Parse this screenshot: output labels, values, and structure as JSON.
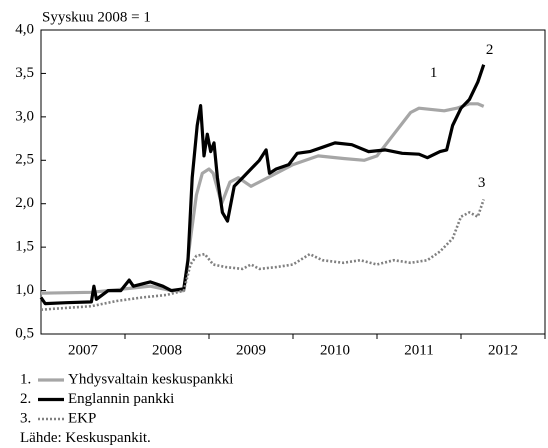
{
  "chart_data": {
    "type": "line",
    "subtitle": "Syyskuu 2008 = 1",
    "xlim": [
      2007,
      2013
    ],
    "xticks": [
      {
        "value": 2007.5,
        "label": "2007"
      },
      {
        "value": 2008.5,
        "label": "2008"
      },
      {
        "value": 2009.5,
        "label": "2009"
      },
      {
        "value": 2010.5,
        "label": "2010"
      },
      {
        "value": 2011.5,
        "label": "2011"
      },
      {
        "value": 2012.5,
        "label": "2012"
      }
    ],
    "ylim": [
      0.5,
      4.0
    ],
    "yticks": [
      {
        "value": 0.5,
        "label": "0,5"
      },
      {
        "value": 1.0,
        "label": "1,0"
      },
      {
        "value": 1.5,
        "label": "1,5"
      },
      {
        "value": 2.0,
        "label": "2,0"
      },
      {
        "value": 2.5,
        "label": "2,5"
      },
      {
        "value": 3.0,
        "label": "3,0"
      },
      {
        "value": 3.5,
        "label": "3,5"
      },
      {
        "value": 4.0,
        "label": "4,0"
      }
    ],
    "grid": false,
    "series": [
      {
        "name": "Yhdysvaltain keskuspankki",
        "legend_prefix": "1.",
        "label": "1",
        "color": "#a6a6a6",
        "dash": "solid",
        "x": [
          2007.0,
          2007.6,
          2007.8,
          2008.0,
          2008.3,
          2008.55,
          2008.7,
          2008.78,
          2008.85,
          2008.92,
          2009.0,
          2009.05,
          2009.15,
          2009.25,
          2009.35,
          2009.5,
          2009.6,
          2009.8,
          2010.0,
          2010.3,
          2010.6,
          2010.85,
          2011.0,
          2011.2,
          2011.4,
          2011.5,
          2011.8,
          2011.95,
          2012.1,
          2012.2,
          2012.27
        ],
        "values": [
          0.97,
          0.98,
          1.0,
          1.02,
          1.05,
          1.0,
          1.0,
          1.6,
          2.1,
          2.35,
          2.4,
          2.35,
          2.0,
          2.25,
          2.3,
          2.2,
          2.25,
          2.35,
          2.45,
          2.55,
          2.52,
          2.5,
          2.55,
          2.8,
          3.05,
          3.1,
          3.07,
          3.1,
          3.15,
          3.15,
          3.12
        ]
      },
      {
        "name": "Englannin pankki",
        "legend_prefix": "2.",
        "label": "2",
        "color": "#000000",
        "dash": "solid",
        "x": [
          2007.0,
          2007.05,
          2007.3,
          2007.6,
          2007.63,
          2007.66,
          2007.8,
          2007.95,
          2008.05,
          2008.1,
          2008.3,
          2008.45,
          2008.55,
          2008.7,
          2008.75,
          2008.8,
          2008.86,
          2008.9,
          2008.94,
          2008.98,
          2009.02,
          2009.06,
          2009.1,
          2009.16,
          2009.22,
          2009.3,
          2009.4,
          2009.5,
          2009.6,
          2009.68,
          2009.72,
          2009.8,
          2009.95,
          2010.05,
          2010.2,
          2010.35,
          2010.5,
          2010.7,
          2010.9,
          2011.1,
          2011.3,
          2011.5,
          2011.6,
          2011.75,
          2011.83,
          2011.9,
          2012.0,
          2012.1,
          2012.2,
          2012.27
        ],
        "values": [
          0.92,
          0.85,
          0.86,
          0.87,
          1.05,
          0.9,
          1.0,
          1.0,
          1.12,
          1.05,
          1.1,
          1.05,
          1.0,
          1.02,
          1.35,
          2.3,
          2.9,
          3.13,
          2.55,
          2.8,
          2.6,
          2.7,
          2.3,
          1.9,
          1.8,
          2.2,
          2.3,
          2.4,
          2.5,
          2.62,
          2.35,
          2.4,
          2.45,
          2.58,
          2.6,
          2.65,
          2.7,
          2.68,
          2.6,
          2.62,
          2.58,
          2.57,
          2.53,
          2.6,
          2.62,
          2.9,
          3.1,
          3.2,
          3.4,
          3.6
        ]
      },
      {
        "name": "EKP",
        "legend_prefix": "3.",
        "label": "3",
        "color": "#808080",
        "dash": "dotted",
        "x": [
          2007.0,
          2007.3,
          2007.6,
          2007.9,
          2008.2,
          2008.5,
          2008.7,
          2008.78,
          2008.85,
          2008.95,
          2009.05,
          2009.2,
          2009.4,
          2009.5,
          2009.6,
          2009.8,
          2010.0,
          2010.2,
          2010.35,
          2010.6,
          2010.8,
          2011.0,
          2011.2,
          2011.4,
          2011.6,
          2011.75,
          2011.9,
          2012.0,
          2012.1,
          2012.2,
          2012.27
        ],
        "values": [
          0.78,
          0.8,
          0.82,
          0.88,
          0.92,
          0.95,
          1.0,
          1.3,
          1.4,
          1.42,
          1.3,
          1.27,
          1.25,
          1.3,
          1.25,
          1.27,
          1.3,
          1.42,
          1.35,
          1.32,
          1.35,
          1.3,
          1.35,
          1.32,
          1.35,
          1.45,
          1.6,
          1.85,
          1.9,
          1.85,
          2.05
        ]
      }
    ],
    "source": "Lähde: Keskuspankit."
  }
}
